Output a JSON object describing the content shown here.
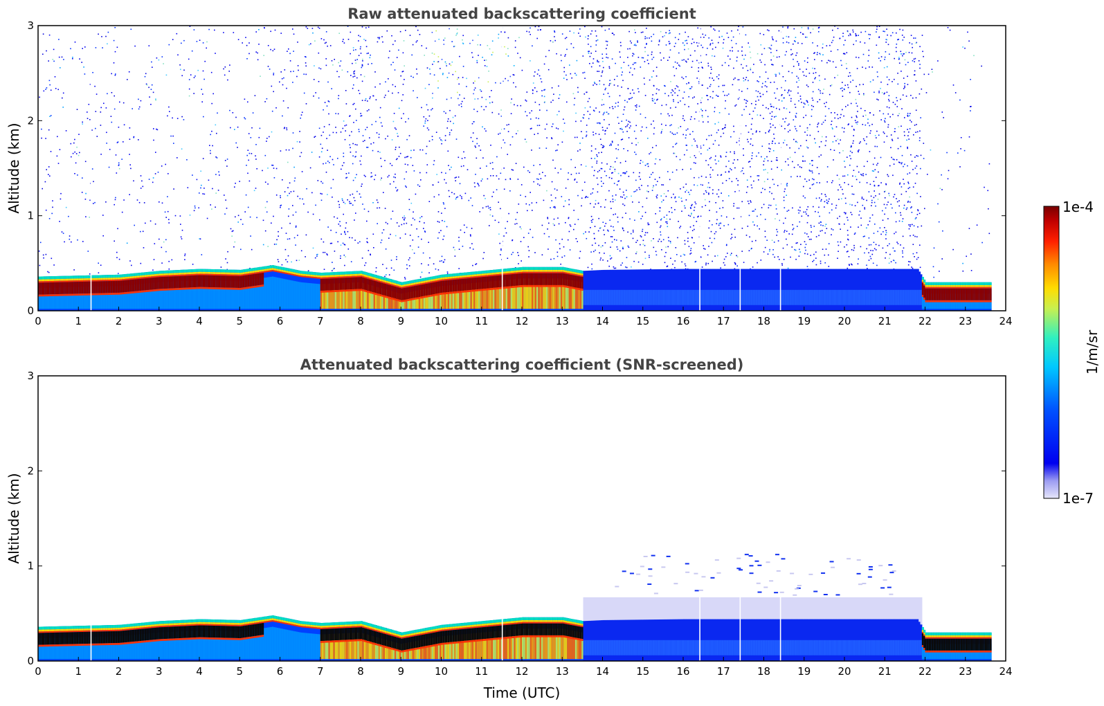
{
  "chart_data": [
    {
      "type": "heatmap",
      "title": "Raw attenuated backscattering coefficient",
      "xlabel": "",
      "ylabel": "Altitude (km)",
      "xlim": [
        0,
        24
      ],
      "ylim": [
        0,
        3
      ],
      "x_ticks": [
        "0",
        "1",
        "2",
        "3",
        "4",
        "5",
        "6",
        "7",
        "8",
        "9",
        "10",
        "11",
        "12",
        "13",
        "14",
        "15",
        "16",
        "17",
        "18",
        "19",
        "20",
        "21",
        "22",
        "23",
        "24"
      ],
      "y_ticks": [
        "0",
        "1",
        "2",
        "3"
      ],
      "data_end_time": 23.6,
      "noise": {
        "segments": [
          {
            "from": 0,
            "to": 5.5,
            "top": 3.0,
            "density": 0.18
          },
          {
            "from": 5.5,
            "to": 7.4,
            "top": 3.0,
            "density": 0.28
          },
          {
            "from": 7.4,
            "to": 8.1,
            "top": 3.0,
            "density": 0.5
          },
          {
            "from": 8.1,
            "to": 13.5,
            "top": 3.0,
            "density": 0.35
          },
          {
            "from": 13.5,
            "to": 21.9,
            "top": 3.0,
            "density": 0.6
          },
          {
            "from": 21.9,
            "to": 23.6,
            "top": 3.0,
            "density": 0.08
          }
        ]
      },
      "boundary_layer_top_km": [
        {
          "t": 0,
          "h": 0.36
        },
        {
          "t": 1,
          "h": 0.37
        },
        {
          "t": 2,
          "h": 0.38
        },
        {
          "t": 3,
          "h": 0.42
        },
        {
          "t": 4,
          "h": 0.44
        },
        {
          "t": 5,
          "h": 0.43
        },
        {
          "t": 5.8,
          "h": 0.48
        },
        {
          "t": 6.5,
          "h": 0.42
        },
        {
          "t": 7.0,
          "h": 0.4
        },
        {
          "t": 8.0,
          "h": 0.42
        },
        {
          "t": 9.0,
          "h": 0.3
        },
        {
          "t": 10,
          "h": 0.38
        },
        {
          "t": 11,
          "h": 0.42
        },
        {
          "t": 12,
          "h": 0.46
        },
        {
          "t": 13,
          "h": 0.46
        },
        {
          "t": 13.5,
          "h": 0.42
        },
        {
          "t": 14,
          "h": 0.43
        },
        {
          "t": 16,
          "h": 0.44
        },
        {
          "t": 18,
          "h": 0.44
        },
        {
          "t": 20,
          "h": 0.44
        },
        {
          "t": 21.8,
          "h": 0.44
        },
        {
          "t": 22,
          "h": 0.3
        },
        {
          "t": 23.6,
          "h": 0.3
        }
      ]
    },
    {
      "type": "heatmap",
      "title": "Attenuated backscattering coefficient (SNR-screened)",
      "xlabel": "Time (UTC)",
      "ylabel": "Altitude (km)",
      "xlim": [
        0,
        24
      ],
      "ylim": [
        0,
        3
      ],
      "x_ticks": [
        "0",
        "1",
        "2",
        "3",
        "4",
        "5",
        "6",
        "7",
        "8",
        "9",
        "10",
        "11",
        "12",
        "13",
        "14",
        "15",
        "16",
        "17",
        "18",
        "19",
        "20",
        "21",
        "22",
        "23",
        "24"
      ],
      "y_ticks": [
        "0",
        "1",
        "2",
        "3"
      ],
      "data_end_time": 23.6,
      "screened_haze_top_km": 0.65
    }
  ],
  "colorbar": {
    "label": "1/m/sr",
    "max_label": "1e-4",
    "min_label": "1e-7",
    "colors": [
      "#e6e6fa",
      "#b4b4f5",
      "#7878f0",
      "#0000f0",
      "#0046ff",
      "#00a0ff",
      "#00dcdc",
      "#50f0a0",
      "#c8f050",
      "#ffdc00",
      "#ff8c00",
      "#ff2800",
      "#c80000",
      "#7a0000"
    ]
  }
}
